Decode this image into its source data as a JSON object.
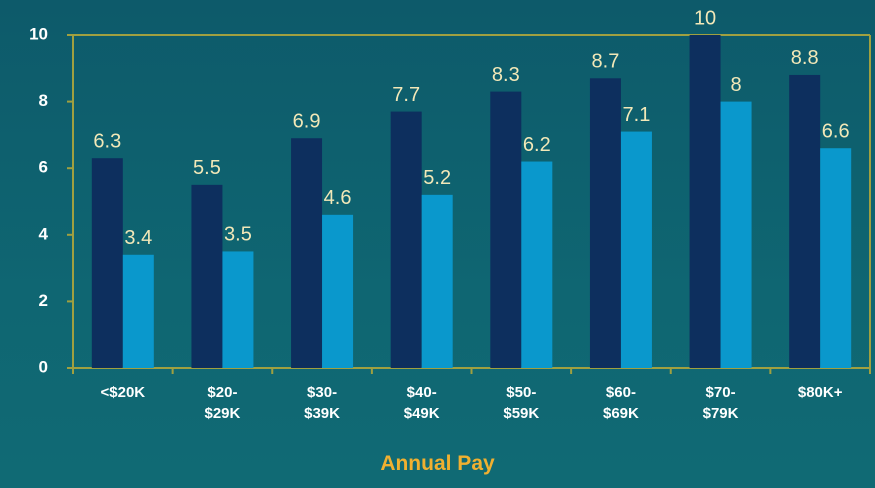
{
  "chart_data": {
    "type": "bar",
    "x_label": "Annual Pay",
    "categories": [
      "<$20K",
      "$20-\n$29K",
      "$30-\n$39K",
      "$40-\n$49K",
      "$50-\n$59K",
      "$60-\n$69K",
      "$70-\n$79K",
      "$80K+"
    ],
    "series": [
      {
        "color": "#0d2f5e",
        "values": [
          6.3,
          5.5,
          6.9,
          7.7,
          8.3,
          8.7,
          10,
          8.8
        ]
      },
      {
        "color": "#0a98cc",
        "values": [
          3.4,
          3.5,
          4.6,
          5.2,
          6.2,
          7.1,
          8,
          6.6
        ]
      }
    ],
    "ylim": [
      0,
      10
    ],
    "yticks": [
      0,
      2,
      4,
      6,
      8,
      10
    ],
    "grid": false
  }
}
